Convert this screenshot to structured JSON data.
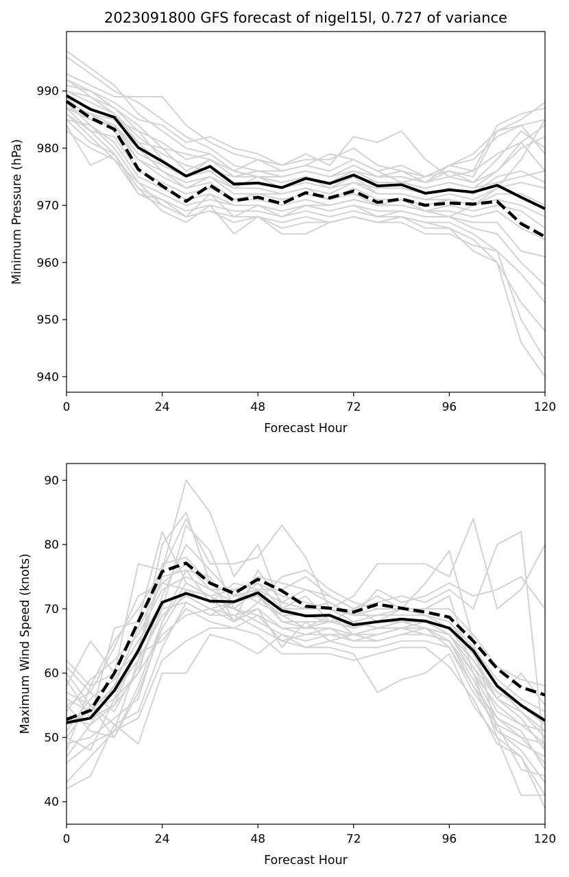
{
  "title": "2023091800 GFS forecast of nigel15l, 0.727 of variance",
  "colors": {
    "ensemble": "#d3d3d3",
    "mean": "#000000",
    "background": "#ffffff"
  },
  "chart_data": [
    {
      "type": "line",
      "name": "pressure",
      "xlabel": "Forecast Hour",
      "ylabel": "Minimum Pressure (hPa)",
      "xlim": [
        0,
        120
      ],
      "ylim": [
        937.3,
        1000.4
      ],
      "xticks": [
        "0",
        "24",
        "48",
        "72",
        "96",
        "120"
      ],
      "yticks": [
        "940",
        "950",
        "960",
        "970",
        "980",
        "990"
      ],
      "grid": false,
      "x": [
        0,
        6,
        12,
        18,
        24,
        30,
        36,
        42,
        48,
        54,
        60,
        66,
        72,
        78,
        84,
        90,
        96,
        102,
        108,
        114,
        120
      ],
      "main_solid": [
        989.2,
        986.8,
        985.4,
        980.1,
        977.7,
        975.1,
        976.8,
        973.7,
        973.9,
        973.1,
        974.7,
        973.8,
        975.3,
        973.4,
        973.6,
        972.1,
        972.7,
        972.3,
        973.5,
        971.4,
        969.4
      ],
      "main_dashed": [
        988.2,
        985.3,
        983.3,
        976.3,
        973.4,
        970.7,
        973.5,
        970.8,
        971.4,
        970.3,
        972.2,
        971.3,
        972.5,
        970.5,
        971.1,
        970.0,
        970.4,
        970.2,
        970.7,
        966.8,
        964.5
      ],
      "ensemble": [
        [
          997,
          994,
          991,
          986,
          983,
          980,
          979,
          976,
          975,
          975,
          976,
          975,
          977,
          975,
          976,
          974,
          976,
          975,
          983,
          985,
          988
        ],
        [
          996,
          993,
          990,
          988,
          985,
          982,
          980,
          977,
          976,
          976,
          977,
          976,
          978,
          976,
          977,
          975,
          977,
          976,
          984,
          986,
          987
        ],
        [
          993,
          991,
          989,
          989,
          989,
          984,
          981,
          979,
          978,
          977,
          978,
          978,
          980,
          977,
          976,
          975,
          977,
          978,
          982,
          984,
          985
        ],
        [
          992,
          990,
          988,
          985,
          984,
          981,
          982,
          980,
          979,
          977,
          979,
          977,
          982,
          981,
          983,
          978,
          975,
          976,
          979,
          981,
          984
        ],
        [
          991,
          990,
          987,
          984,
          980,
          979,
          978,
          976,
          978,
          976,
          977,
          979,
          978,
          976,
          974,
          975,
          976,
          974,
          978,
          983,
          980
        ],
        [
          990,
          988,
          986,
          982,
          979,
          977,
          976,
          975,
          976,
          975,
          976,
          975,
          976,
          975,
          975,
          974,
          977,
          979,
          983,
          984,
          979
        ],
        [
          989,
          987,
          985,
          981,
          980,
          976,
          978,
          975,
          975,
          974,
          975,
          974,
          975,
          974,
          974,
          973,
          974,
          973,
          976,
          981,
          976
        ],
        [
          990,
          989,
          987,
          983,
          978,
          975,
          977,
          974,
          974,
          973,
          974,
          973,
          974,
          973,
          973,
          972,
          973,
          972,
          975,
          976,
          974
        ],
        [
          988,
          986,
          984,
          979,
          977,
          975,
          976,
          973,
          975,
          973,
          975,
          973,
          975,
          972,
          972,
          971,
          972,
          971,
          973,
          974,
          973
        ],
        [
          989,
          985,
          984,
          980,
          976,
          974,
          975,
          973,
          973,
          972,
          973,
          972,
          974,
          972,
          972,
          971,
          971,
          970,
          972,
          972,
          970
        ],
        [
          988,
          986,
          983,
          978,
          976,
          973,
          975,
          972,
          972,
          972,
          973,
          971,
          973,
          971,
          971,
          970,
          971,
          970,
          971,
          970,
          968
        ],
        [
          987,
          985,
          984,
          978,
          975,
          973,
          974,
          971,
          972,
          971,
          972,
          971,
          972,
          970,
          971,
          969,
          970,
          969,
          970,
          969,
          966
        ],
        [
          986,
          983,
          982,
          976,
          974,
          972,
          973,
          971,
          971,
          970,
          971,
          970,
          971,
          970,
          970,
          969,
          969,
          968,
          969,
          966,
          964
        ],
        [
          985,
          984,
          981,
          975,
          973,
          971,
          972,
          970,
          970,
          969,
          970,
          969,
          970,
          969,
          969,
          968,
          968,
          967,
          967,
          962,
          961
        ],
        [
          988,
          984,
          980,
          974,
          972,
          970,
          971,
          970,
          970,
          969,
          970,
          969,
          970,
          968,
          969,
          968,
          968,
          966,
          965,
          960,
          956
        ],
        [
          987,
          983,
          979,
          973,
          971,
          969,
          970,
          969,
          969,
          968,
          969,
          968,
          969,
          968,
          968,
          967,
          967,
          965,
          962,
          958,
          953
        ],
        [
          986,
          982,
          978,
          972,
          971,
          968,
          969,
          968,
          968,
          967,
          968,
          967,
          968,
          967,
          968,
          967,
          966,
          964,
          960,
          953,
          948
        ],
        [
          985,
          981,
          979,
          972,
          970,
          968,
          969,
          967,
          968,
          966,
          967,
          967,
          968,
          967,
          968,
          966,
          966,
          962,
          960,
          946,
          940
        ],
        [
          984,
          977,
          979,
          973,
          969,
          967,
          970,
          965,
          968,
          965,
          965,
          967,
          968,
          967,
          967,
          965,
          965,
          963,
          962,
          950,
          943
        ],
        [
          983,
          980,
          978,
          974,
          970,
          968,
          972,
          968,
          970,
          968,
          970,
          970,
          971,
          970,
          970,
          969,
          968,
          970,
          973,
          978,
          985
        ],
        [
          992,
          989,
          986,
          981,
          977,
          975,
          978,
          975,
          976,
          975,
          976,
          975,
          977,
          975,
          975,
          974,
          975,
          974,
          976,
          980,
          982
        ],
        [
          987,
          986,
          985,
          983,
          981,
          978,
          979,
          976,
          975,
          974,
          975,
          974,
          976,
          974,
          974,
          973,
          974,
          973,
          974,
          975,
          976
        ]
      ]
    },
    {
      "type": "line",
      "name": "wind",
      "xlabel": "Forecast Hour",
      "ylabel": "Maximum Wind Speed (knots)",
      "xlim": [
        0,
        120
      ],
      "ylim": [
        36.5,
        92.6
      ],
      "xticks": [
        "0",
        "24",
        "48",
        "72",
        "96",
        "120"
      ],
      "yticks": [
        "40",
        "50",
        "60",
        "70",
        "80",
        "90"
      ],
      "grid": false,
      "x": [
        0,
        6,
        12,
        18,
        24,
        30,
        36,
        42,
        48,
        54,
        60,
        66,
        72,
        78,
        84,
        90,
        96,
        102,
        108,
        114,
        120
      ],
      "main_solid": [
        52.3,
        53.0,
        57.3,
        63.5,
        71.0,
        72.4,
        71.2,
        71.1,
        72.5,
        69.7,
        68.9,
        69.0,
        67.5,
        68.0,
        68.4,
        68.1,
        67.0,
        63.5,
        58.0,
        55.0,
        52.6
      ],
      "main_dashed": [
        52.8,
        54.2,
        60.0,
        68.0,
        75.8,
        77.1,
        74.0,
        72.4,
        74.6,
        72.8,
        70.4,
        70.1,
        69.5,
        70.7,
        70.1,
        69.5,
        68.7,
        65.0,
        60.7,
        57.8,
        56.6
      ],
      "ensemble": [
        [
          62,
          58,
          65,
          70,
          76,
          90,
          85,
          75,
          80,
          70,
          72,
          68,
          70,
          72,
          70,
          74,
          79,
          65,
          51,
          48,
          43
        ],
        [
          58,
          65,
          60,
          77,
          76,
          84,
          77,
          77,
          78,
          83,
          78,
          70,
          72,
          77,
          77,
          77,
          75,
          84,
          70,
          73,
          80
        ],
        [
          53,
          52,
          58,
          63,
          80,
          85,
          74,
          72,
          75,
          74,
          73,
          72,
          70,
          71,
          72,
          71,
          73,
          70,
          80,
          82,
          47
        ],
        [
          55,
          57,
          54,
          61,
          70,
          83,
          79,
          70,
          73,
          73,
          75,
          72,
          70,
          68,
          70,
          70,
          72,
          60,
          50,
          47,
          41
        ],
        [
          60,
          55,
          50,
          58,
          68,
          76,
          75,
          68,
          76,
          71,
          73,
          71,
          69,
          73,
          71,
          72,
          74,
          72,
          73,
          75,
          70
        ],
        [
          49,
          50,
          53,
          56,
          68,
          74,
          72,
          73,
          71,
          75,
          76,
          73,
          71,
          70,
          70,
          69,
          67,
          62,
          57,
          55,
          53
        ],
        [
          47,
          52,
          55,
          60,
          72,
          80,
          76,
          72,
          72,
          70,
          69,
          68,
          68,
          67,
          68,
          68,
          67,
          63,
          58,
          54,
          50
        ],
        [
          46,
          49,
          51,
          62,
          77,
          78,
          74,
          72,
          73,
          68,
          67,
          69,
          66,
          67,
          67,
          68,
          66,
          60,
          55,
          52,
          49
        ],
        [
          52,
          53,
          55,
          64,
          75,
          76,
          71,
          70,
          69,
          67,
          66,
          67,
          65,
          66,
          67,
          67,
          66,
          61,
          56,
          53,
          48
        ],
        [
          55,
          51,
          50,
          57,
          67,
          73,
          72,
          70,
          68,
          66,
          65,
          66,
          65,
          65,
          66,
          66,
          65,
          59,
          52,
          50,
          46
        ],
        [
          57,
          55,
          52,
          54,
          64,
          71,
          69,
          69,
          67,
          65,
          64,
          65,
          64,
          64,
          65,
          65,
          64,
          57,
          52,
          45,
          44
        ],
        [
          42,
          44,
          52,
          49,
          60,
          60,
          66,
          65,
          63,
          66,
          64,
          64,
          63,
          57,
          59,
          60,
          63,
          55,
          50,
          41,
          41
        ],
        [
          43,
          47,
          51,
          53,
          62,
          65,
          67,
          67,
          66,
          63,
          63,
          63,
          62,
          63,
          64,
          64,
          61,
          56,
          49,
          47,
          39
        ],
        [
          50,
          48,
          56,
          60,
          66,
          69,
          70,
          68,
          70,
          64,
          68,
          65,
          66,
          65,
          66,
          67,
          64,
          58,
          53,
          51,
          45
        ],
        [
          54,
          59,
          62,
          66,
          73,
          75,
          73,
          71,
          74,
          70,
          70,
          71,
          69,
          69,
          69,
          69,
          68,
          64,
          59,
          56,
          54
        ],
        [
          51,
          56,
          59,
          65,
          71,
          72,
          70,
          71,
          72,
          69,
          69,
          69,
          67,
          68,
          68,
          68,
          66,
          62,
          57,
          55,
          52
        ],
        [
          56,
          54,
          58,
          67,
          74,
          73,
          71,
          74,
          73,
          71,
          70,
          70,
          68,
          69,
          70,
          69,
          68,
          63,
          56,
          60,
          55
        ],
        [
          59,
          53,
          67,
          68,
          82,
          74,
          72,
          68,
          71,
          69,
          67,
          68,
          68,
          67,
          68,
          67,
          66,
          61,
          54,
          52,
          51
        ],
        [
          48,
          58,
          60,
          63,
          65,
          70,
          68,
          67,
          69,
          65,
          66,
          66,
          66,
          66,
          67,
          66,
          65,
          58,
          51,
          49,
          47
        ],
        [
          50,
          55,
          57,
          62,
          69,
          72,
          70,
          69,
          70,
          67,
          67,
          67,
          66,
          67,
          67,
          67,
          65,
          60,
          53,
          50,
          49
        ],
        [
          61,
          57,
          64,
          72,
          74,
          77,
          73,
          73,
          74,
          72,
          71,
          70,
          69,
          70,
          70,
          70,
          70,
          66,
          61,
          59,
          58
        ],
        [
          52,
          54,
          56,
          64,
          70,
          71,
          69,
          71,
          72,
          68,
          68,
          68,
          67,
          68,
          68,
          68,
          67,
          62,
          56,
          54,
          51
        ]
      ]
    }
  ]
}
